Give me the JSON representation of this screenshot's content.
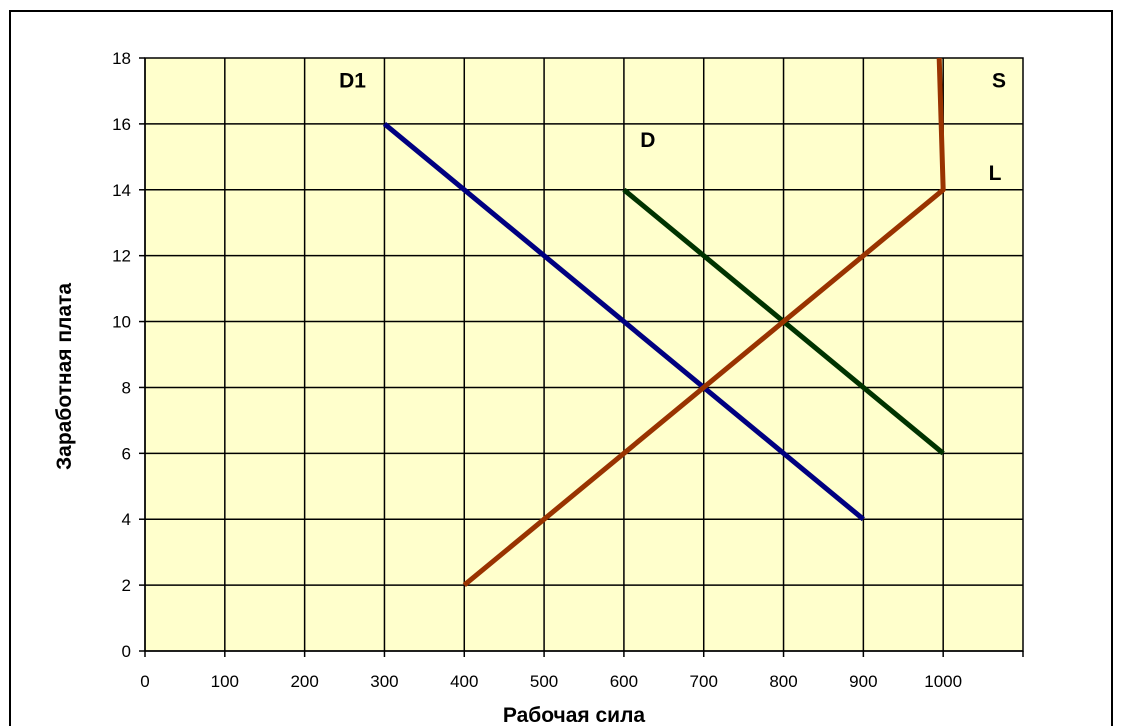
{
  "chart_data": {
    "type": "line",
    "xlabel": "Рабочая сила",
    "ylabel": "Заработная плата",
    "xlim": [
      0,
      1100
    ],
    "ylim": [
      0,
      18
    ],
    "x_ticks": [
      "0",
      "100",
      "200",
      "300",
      "400",
      "500",
      "600",
      "700",
      "800",
      "900",
      "1000"
    ],
    "y_ticks": [
      "0",
      "2",
      "4",
      "6",
      "8",
      "10",
      "12",
      "14",
      "16",
      "18"
    ],
    "grid": true,
    "plot_background": "#ffffcc",
    "series": [
      {
        "name": "D1",
        "color": "#000080",
        "points": [
          [
            300,
            16
          ],
          [
            900,
            4
          ]
        ]
      },
      {
        "name": "D",
        "color": "#003300",
        "points": [
          [
            600,
            14
          ],
          [
            1000,
            6
          ]
        ]
      },
      {
        "name": "SL",
        "color": "#993300",
        "points": [
          [
            400,
            2
          ],
          [
            1000,
            14
          ],
          [
            995,
            18
          ]
        ]
      }
    ],
    "annotations": [
      {
        "text": "D1",
        "x": 260,
        "y": 17.1
      },
      {
        "text": "D",
        "x": 630,
        "y": 15.3
      },
      {
        "text": "S",
        "x": 1070,
        "y": 17.1
      },
      {
        "text": "L",
        "x": 1065,
        "y": 14.3
      }
    ]
  }
}
